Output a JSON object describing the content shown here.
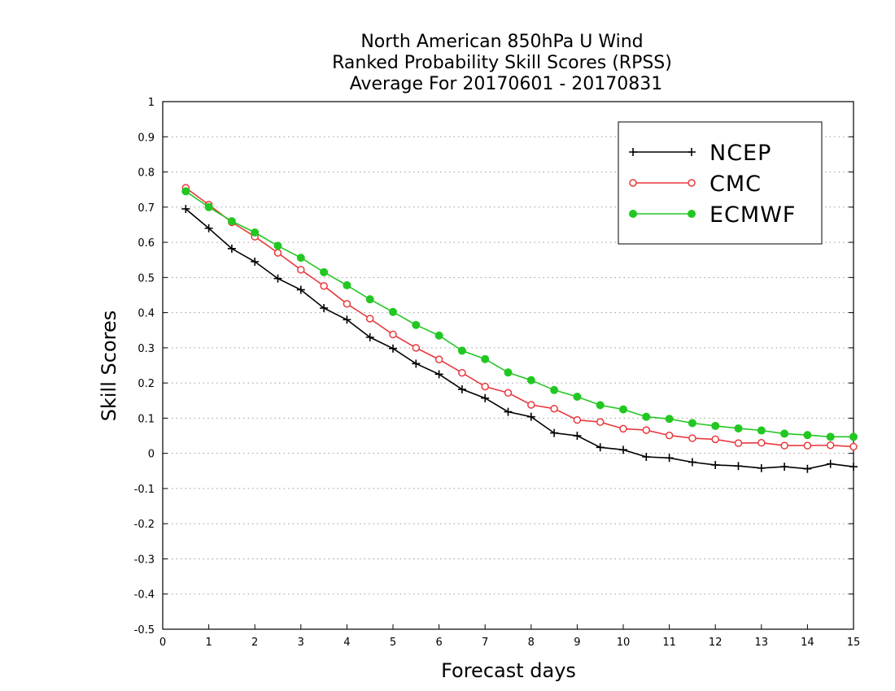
{
  "chart_data": {
    "type": "line",
    "title": [
      "North American 850hPa U Wind",
      "Ranked Probability Skill Scores (RPSS)",
      "Average For 20170601 - 20170831"
    ],
    "xlabel": "Forecast days",
    "ylabel": "Skill Scores",
    "xlim": [
      0,
      15
    ],
    "ylim": [
      -0.5,
      1
    ],
    "xticks": [
      "0",
      "1",
      "2",
      "3",
      "4",
      "5",
      "6",
      "7",
      "8",
      "9",
      "10",
      "11",
      "12",
      "13",
      "14",
      "15"
    ],
    "yticks": [
      "-0.5",
      "-0.4",
      "-0.3",
      "-0.2",
      "-0.1",
      "0",
      "0.1",
      "0.2",
      "0.3",
      "0.4",
      "0.5",
      "0.6",
      "0.7",
      "0.8",
      "0.9",
      "1"
    ],
    "grid": true,
    "legend_position": "top-right",
    "x": [
      0.5,
      1,
      1.5,
      2,
      2.5,
      3,
      3.5,
      4,
      4.5,
      5,
      5.5,
      6,
      6.5,
      7,
      7.5,
      8,
      8.5,
      9,
      9.5,
      10,
      10.5,
      11,
      11.5,
      12,
      12.5,
      13,
      13.5,
      14,
      14.5,
      15
    ],
    "series": [
      {
        "name": "NCEP",
        "color": "#000000",
        "marker": "plus",
        "values": [
          0.695,
          0.64,
          0.582,
          0.545,
          0.497,
          0.465,
          0.413,
          0.38,
          0.33,
          0.298,
          0.255,
          0.225,
          0.182,
          0.157,
          0.118,
          0.104,
          0.058,
          0.05,
          0.017,
          0.01,
          -0.01,
          -0.013,
          -0.025,
          -0.033,
          -0.036,
          -0.042,
          -0.038,
          -0.044,
          -0.03,
          -0.038
        ]
      },
      {
        "name": "CMC",
        "color": "#e8393d",
        "marker": "open-circle",
        "values": [
          0.755,
          0.707,
          0.657,
          0.616,
          0.57,
          0.522,
          0.476,
          0.425,
          0.383,
          0.338,
          0.3,
          0.267,
          0.229,
          0.19,
          0.172,
          0.138,
          0.127,
          0.095,
          0.089,
          0.07,
          0.066,
          0.051,
          0.043,
          0.04,
          0.029,
          0.03,
          0.022,
          0.022,
          0.023,
          0.019
        ]
      },
      {
        "name": "ECMWF",
        "color": "#22c722",
        "marker": "filled-circle",
        "values": [
          0.745,
          0.7,
          0.66,
          0.628,
          0.59,
          0.556,
          0.515,
          0.478,
          0.438,
          0.402,
          0.365,
          0.335,
          0.292,
          0.268,
          0.23,
          0.208,
          0.18,
          0.161,
          0.137,
          0.125,
          0.104,
          0.098,
          0.086,
          0.078,
          0.071,
          0.065,
          0.056,
          0.052,
          0.047,
          0.047
        ]
      }
    ]
  }
}
